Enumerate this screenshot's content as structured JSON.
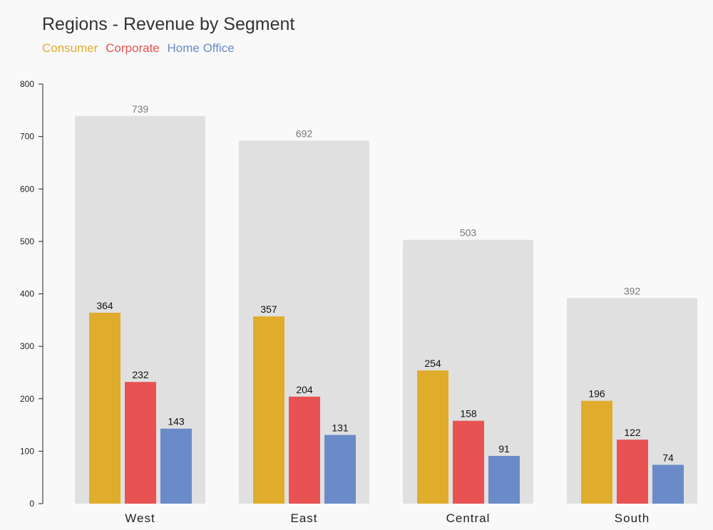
{
  "chart_data": {
    "type": "bar",
    "title": "Regions - Revenue by Segment",
    "xlabel": "",
    "ylabel": "",
    "ylim": [
      0,
      800
    ],
    "yticks": [
      0,
      100,
      200,
      300,
      400,
      500,
      600,
      700,
      800
    ],
    "categories": [
      "West",
      "East",
      "Central",
      "South"
    ],
    "totals": [
      739,
      692,
      503,
      392
    ],
    "series": [
      {
        "name": "Consumer",
        "color": "#E0AC2B",
        "values": [
          364,
          357,
          254,
          196
        ]
      },
      {
        "name": "Corporate",
        "color": "#E85252",
        "values": [
          232,
          204,
          158,
          122
        ]
      },
      {
        "name": "Home Office",
        "color": "#6A8BC8",
        "values": [
          143,
          131,
          91,
          74
        ]
      }
    ],
    "total_bar_color": "#E0E0E0",
    "legend_position": "top-left",
    "grid": false
  }
}
